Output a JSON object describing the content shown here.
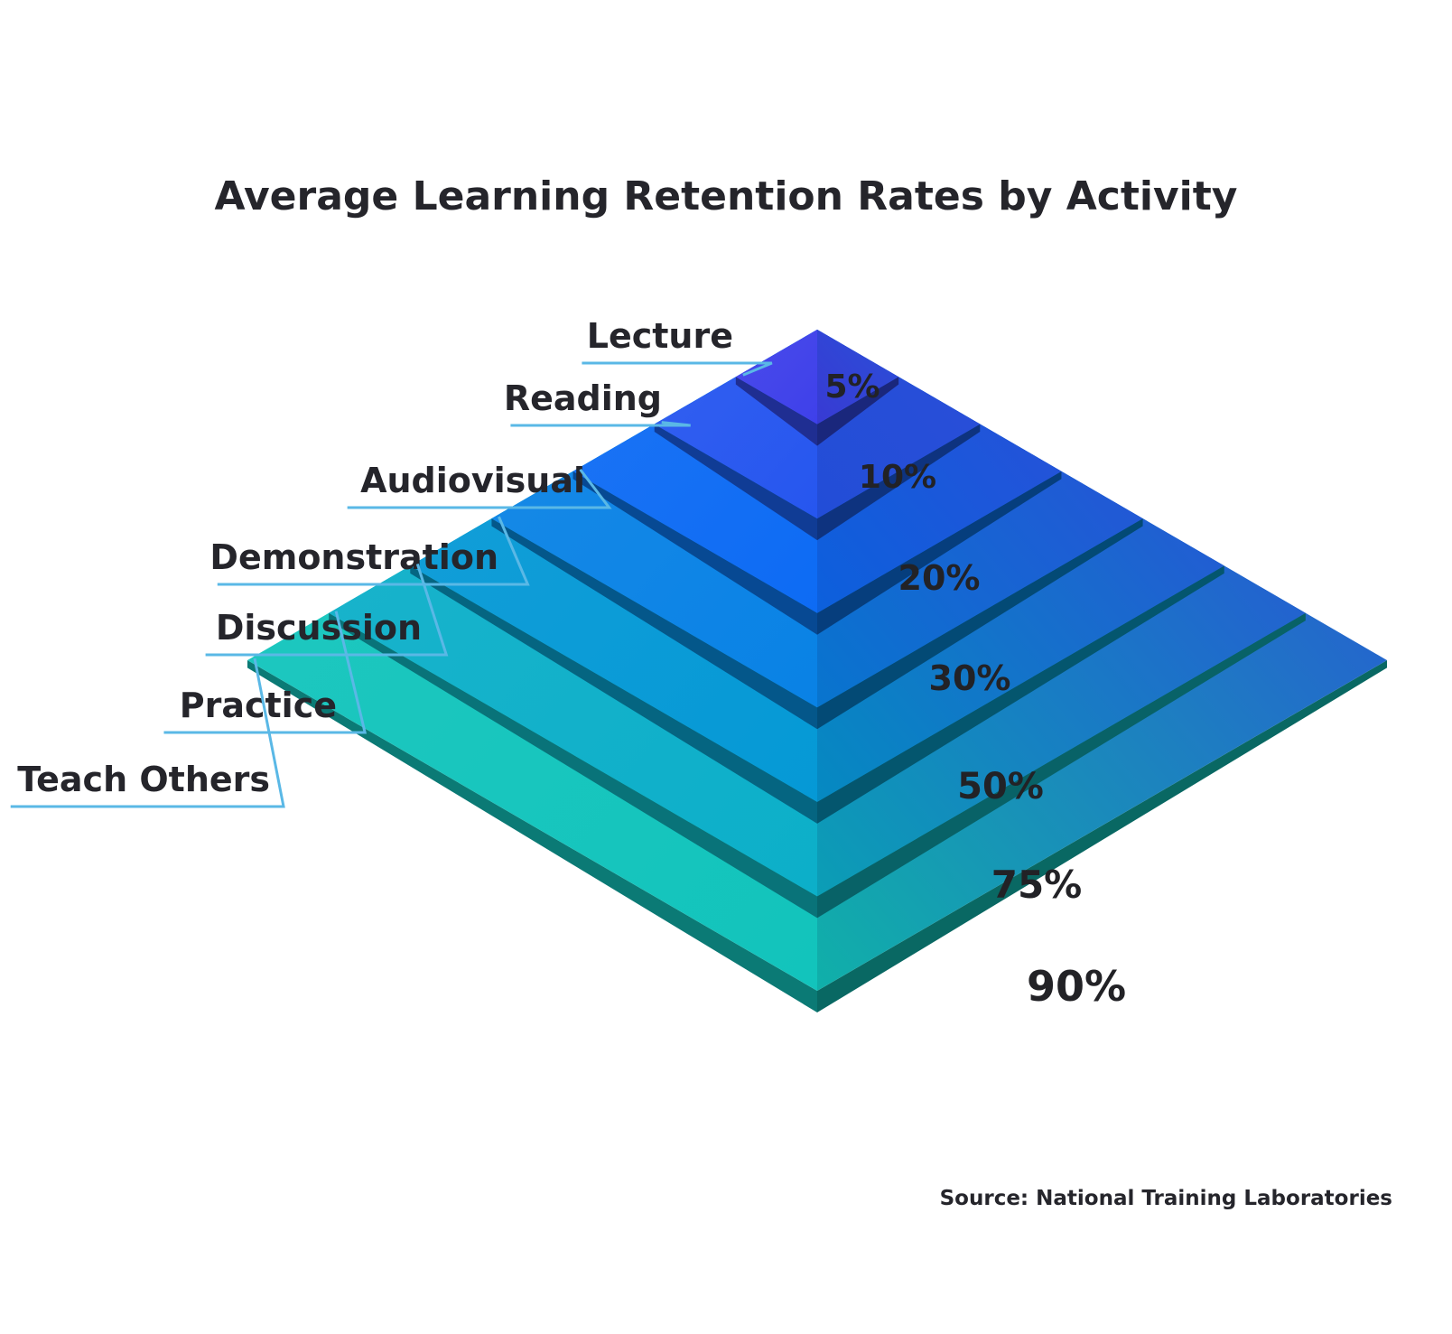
{
  "diagram": {
    "title": "Average Learning Retention Rates by Activity",
    "source": "Source: National Training Laboratories",
    "levels": [
      {
        "activity": "Lecture",
        "rate": "5%"
      },
      {
        "activity": "Reading",
        "rate": "10%"
      },
      {
        "activity": "Audiovisual",
        "rate": "20%"
      },
      {
        "activity": "Demonstration",
        "rate": "30%"
      },
      {
        "activity": "Discussion",
        "rate": "50%"
      },
      {
        "activity": "Practice",
        "rate": "75%"
      },
      {
        "activity": "Teach Others",
        "rate": "90%"
      }
    ],
    "colors": {
      "top_tier": "#3e40ea",
      "upper_tier": "#0d6bf4",
      "middle_tier": "#0599d6",
      "base_tier": "#12c4bc",
      "right_face": "#2a4fd8",
      "leader_line": "#5ab8e6",
      "text": "#25252b"
    }
  }
}
